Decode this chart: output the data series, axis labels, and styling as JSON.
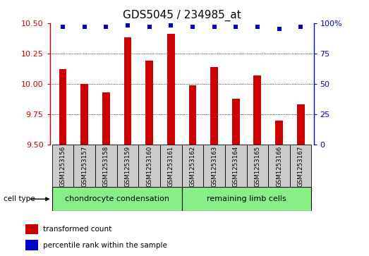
{
  "title": "GDS5045 / 234985_at",
  "samples": [
    "GSM1253156",
    "GSM1253157",
    "GSM1253158",
    "GSM1253159",
    "GSM1253160",
    "GSM1253161",
    "GSM1253162",
    "GSM1253163",
    "GSM1253164",
    "GSM1253165",
    "GSM1253166",
    "GSM1253167"
  ],
  "bar_values": [
    10.12,
    10.0,
    9.93,
    10.38,
    10.19,
    10.41,
    9.99,
    10.14,
    9.88,
    10.07,
    9.7,
    9.83
  ],
  "dot_values": [
    97,
    97,
    97,
    98,
    97,
    98,
    97,
    97,
    97,
    97,
    95,
    97
  ],
  "bar_color": "#cc0000",
  "dot_color": "#0000cc",
  "ylim_left": [
    9.5,
    10.5
  ],
  "ylim_right": [
    0,
    100
  ],
  "yticks_left": [
    9.5,
    9.75,
    10.0,
    10.25,
    10.5
  ],
  "yticks_right": [
    0,
    25,
    50,
    75,
    100
  ],
  "group1_label": "chondrocyte condensation",
  "group2_label": "remaining limb cells",
  "group1_count": 6,
  "group2_count": 6,
  "cell_type_label": "cell type",
  "legend_bar": "transformed count",
  "legend_dot": "percentile rank within the sample",
  "bar_bg_color": "#cccccc",
  "group_bg_color": "#88ee88",
  "title_fontsize": 11,
  "tick_fontsize": 8,
  "label_fontsize": 8
}
